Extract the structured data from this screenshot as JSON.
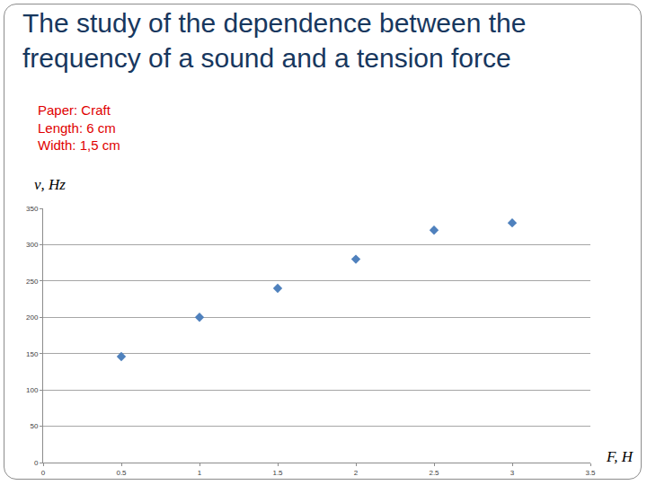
{
  "chart_data": {
    "type": "scatter",
    "title": [
      "The study of the dependence between the",
      "frequency of a sound and a tension force"
    ],
    "annotations": [
      "Paper: Craft",
      "Length: 6 cm",
      "Width: 1,5 cm"
    ],
    "x_label": "F, H",
    "y_label": "ν, Hz",
    "x": [
      0.5,
      1,
      1.5,
      2,
      2.5,
      3
    ],
    "values": [
      146,
      200,
      240,
      280,
      320,
      330
    ],
    "color": "#4f81bd",
    "marker": "diamond",
    "xlim": [
      0,
      3.5
    ],
    "xticks": [
      0,
      0.5,
      1,
      1.5,
      2,
      2.5,
      3,
      3.5
    ],
    "ylim": [
      0,
      350
    ],
    "yticks": [
      0,
      50,
      100,
      150,
      200,
      250,
      300,
      350
    ],
    "grid": true
  }
}
